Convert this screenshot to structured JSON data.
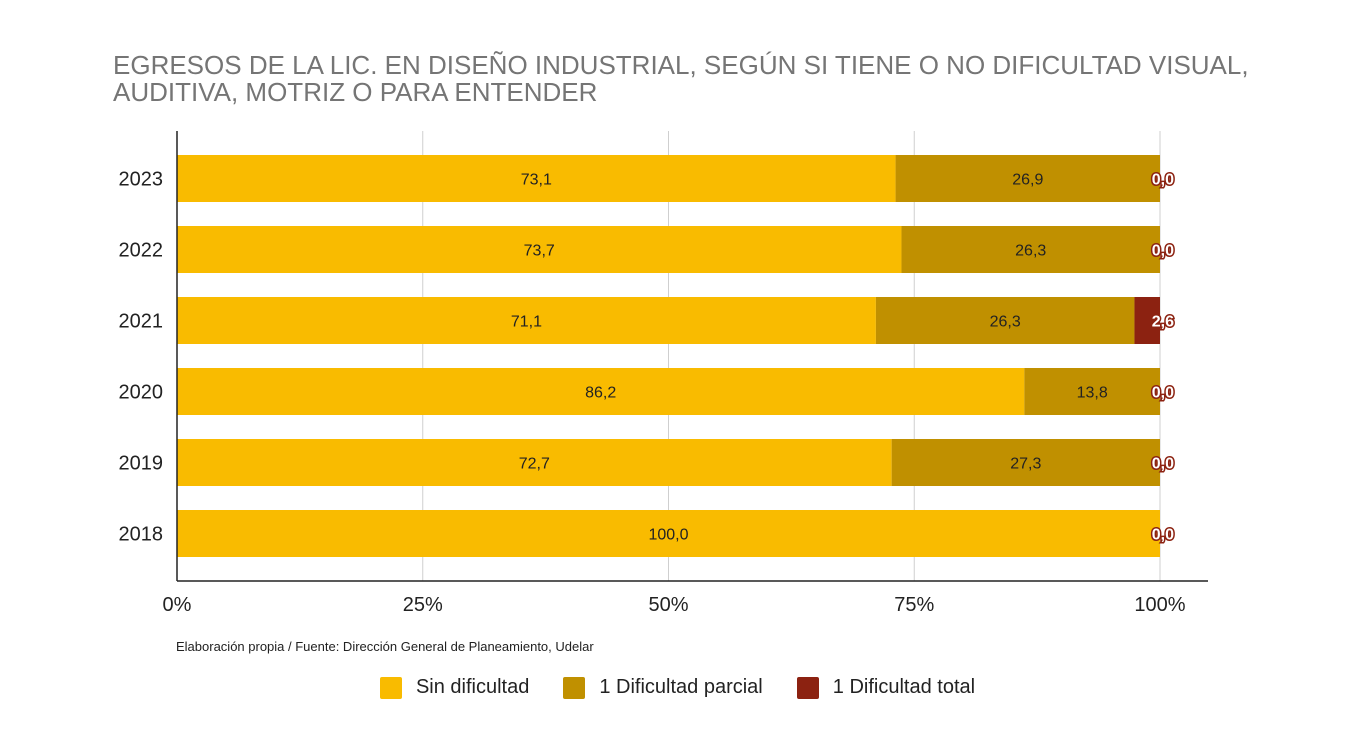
{
  "chart_data": {
    "type": "bar",
    "orientation": "horizontal",
    "stacked": true,
    "title": "EGRESOS DE LA LIC. EN DISEÑO INDUSTRIAL, SEGÚN SI TIENE O NO DIFICULTAD VISUAL, AUDITIVA, MOTRIZ O PARA ENTENDER",
    "categories": [
      "2023",
      "2022",
      "2021",
      "2020",
      "2019",
      "2018"
    ],
    "series": [
      {
        "name": "Sin dificultad",
        "color": "#f9bb00",
        "values": [
          73.1,
          73.7,
          71.1,
          86.2,
          72.7,
          100.0
        ],
        "labels": [
          "73,1",
          "73,7",
          "71,1",
          "86,2",
          "72,7",
          "100,0"
        ]
      },
      {
        "name": "1 Dificultad parcial",
        "color": "#c09000",
        "values": [
          26.9,
          26.3,
          26.3,
          13.8,
          27.3,
          0.0
        ],
        "labels": [
          "26,9",
          "26,3",
          "26,3",
          "13,8",
          "27,3",
          ""
        ]
      },
      {
        "name": "1 Dificultad total",
        "color": "#8c2211",
        "values": [
          0.0,
          0.0,
          2.6,
          0.0,
          0.0,
          0.0
        ],
        "labels": [
          "0,0",
          "0,0",
          "2,6",
          "0,0",
          "0,0",
          "0,0"
        ]
      }
    ],
    "xlim": [
      0,
      100
    ],
    "xticks": [
      0,
      25,
      50,
      75,
      100
    ],
    "xtick_labels": [
      "0%",
      "25%",
      "50%",
      "75%",
      "100%"
    ],
    "grid": true,
    "legend_position": "bottom",
    "xlabel": "",
    "ylabel": ""
  },
  "source_note": "Elaboración propia / Fuente: Dirección General de Planeamiento, Udelar"
}
